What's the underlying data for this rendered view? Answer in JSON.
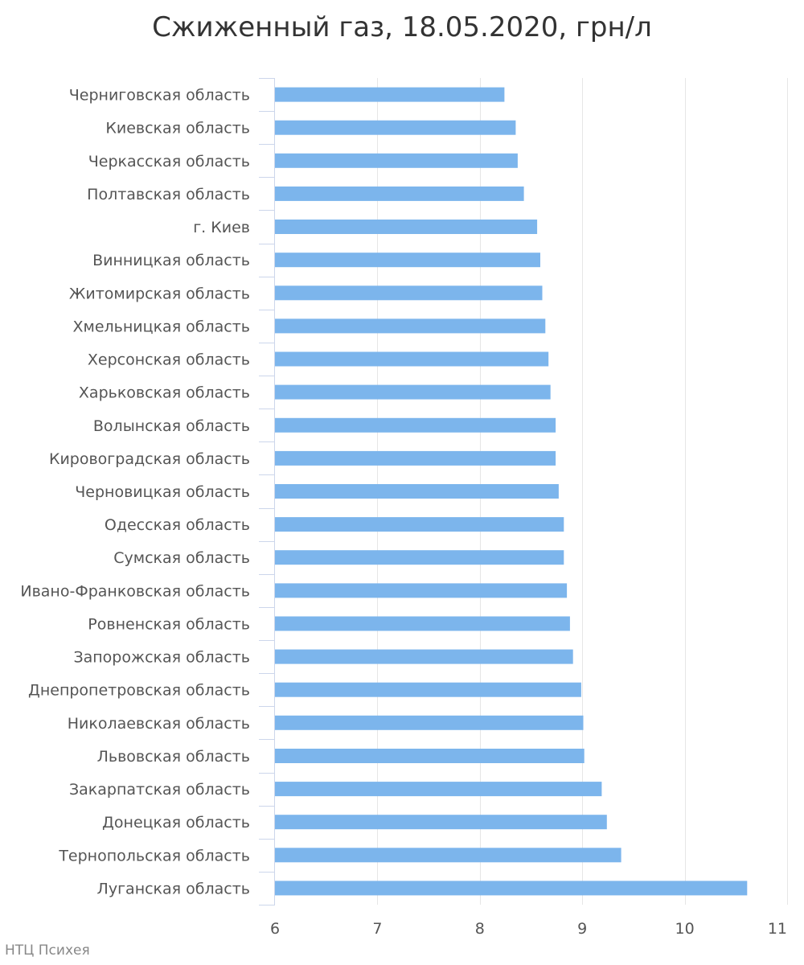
{
  "chart_data": {
    "type": "bar",
    "orientation": "horizontal",
    "title": "Сжиженный газ, 18.05.2020, грн/л",
    "xlabel": "",
    "ylabel": "",
    "xlim": [
      6,
      11
    ],
    "ticks": [
      6,
      7,
      8,
      9,
      10,
      11
    ],
    "grid": true,
    "bar_color": "#7cb5ec",
    "categories": [
      "Черниговская область",
      "Киевская область",
      "Черкасская область",
      "Полтавская область",
      "г. Киев",
      "Винницкая область",
      "Житомирская область",
      "Хмельницкая область",
      "Херсонская область",
      "Харьковская область",
      "Волынская область",
      "Кировоградская область",
      "Черновицкая область",
      "Одесская область",
      "Сумская область",
      "Ивано-Франковская область",
      "Ровненская область",
      "Запорожская область",
      "Днепропетровская область",
      "Николаевская область",
      "Львовская область",
      "Закарпатская область",
      "Донецкая область",
      "Тернопольская область",
      "Луганская область"
    ],
    "values": [
      8.24,
      8.35,
      8.37,
      8.43,
      8.56,
      8.59,
      8.61,
      8.64,
      8.67,
      8.69,
      8.74,
      8.74,
      8.77,
      8.82,
      8.82,
      8.85,
      8.88,
      8.91,
      8.99,
      9.01,
      9.02,
      9.19,
      9.24,
      9.38,
      10.61
    ]
  },
  "credit": "НТЦ Психея"
}
